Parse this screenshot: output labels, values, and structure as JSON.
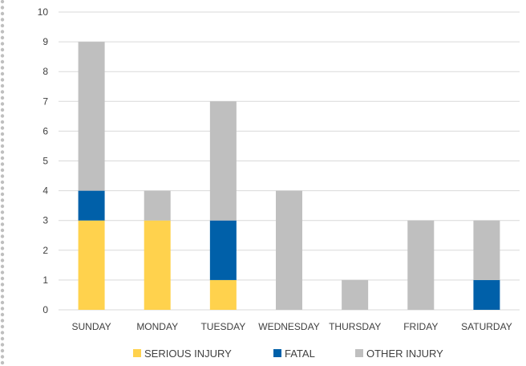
{
  "chart_data": {
    "type": "bar",
    "stacked": true,
    "categories": [
      "SUNDAY",
      "MONDAY",
      "TUESDAY",
      "WEDNESDAY",
      "THURSDAY",
      "FRIDAY",
      "SATURDAY"
    ],
    "series": [
      {
        "name": "SERIOUS INJURY",
        "color": "#FFD24D",
        "values": [
          3,
          3,
          1,
          0,
          0,
          0,
          0
        ]
      },
      {
        "name": "FATAL",
        "color": "#0060A9",
        "values": [
          1,
          0,
          2,
          0,
          0,
          0,
          1
        ]
      },
      {
        "name": "OTHER INJURY",
        "color": "#BFBFBF",
        "values": [
          5,
          1,
          4,
          4,
          1,
          3,
          2
        ]
      }
    ],
    "ylim": [
      0,
      10
    ],
    "yticks": [
      0,
      1,
      2,
      3,
      4,
      5,
      6,
      7,
      8,
      9,
      10
    ],
    "grid": true,
    "legend_position": "bottom",
    "title": "",
    "xlabel": "",
    "ylabel": ""
  }
}
